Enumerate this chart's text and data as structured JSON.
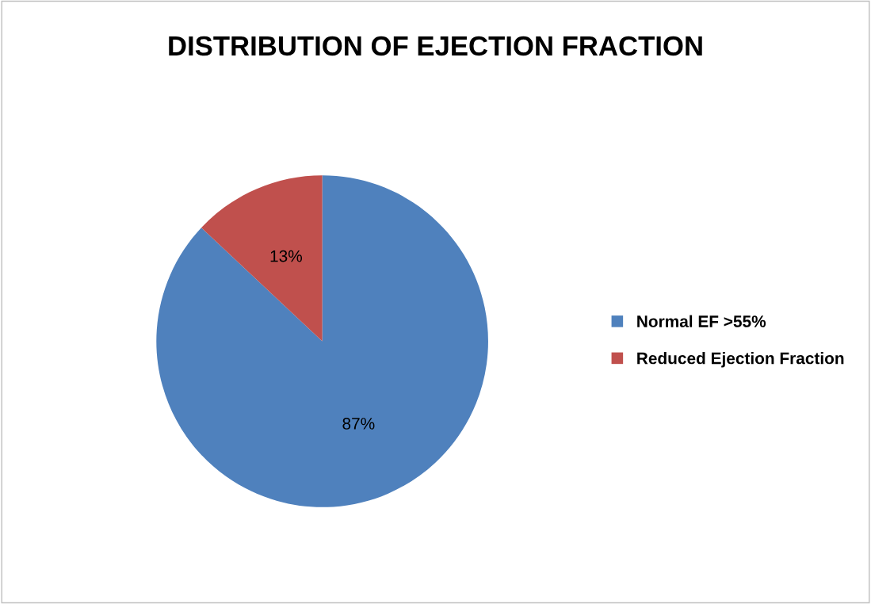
{
  "chart_data": {
    "type": "pie",
    "title": "DISTRIBUTION OF EJECTION FRACTION",
    "categories": [
      "Normal EF >55%",
      "Reduced Ejection Fraction"
    ],
    "values": [
      87,
      13
    ],
    "colors": [
      "#4f81bd",
      "#c0504d"
    ],
    "value_labels": [
      "87%",
      "13%"
    ],
    "legend": "right"
  }
}
